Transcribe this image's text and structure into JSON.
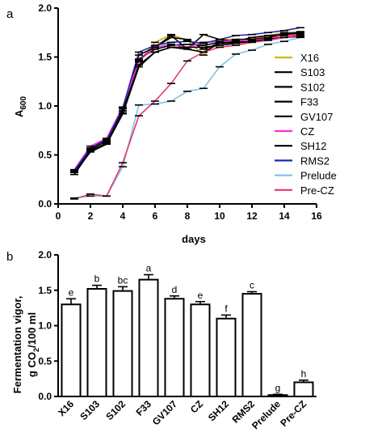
{
  "chart_data": [
    {
      "type": "line",
      "panel_label": "a",
      "xlabel": "days",
      "ylabel": "A600",
      "xlim": [
        0,
        16
      ],
      "ylim": [
        0,
        2.0
      ],
      "xticks": [
        0,
        2,
        4,
        6,
        8,
        10,
        12,
        14,
        16
      ],
      "yticks": [
        0.0,
        0.5,
        1.0,
        1.5,
        2.0
      ],
      "legend_position": "right",
      "series": [
        {
          "name": "X16",
          "color": "#d4b300",
          "x": [
            1,
            2,
            3,
            4,
            5,
            6,
            7,
            8,
            9,
            10,
            11,
            12,
            13,
            14,
            15
          ],
          "y": [
            0.33,
            0.55,
            0.63,
            0.93,
            1.45,
            1.65,
            1.73,
            1.67,
            1.52,
            1.68,
            1.68,
            1.68,
            1.72,
            1.75,
            1.76
          ]
        },
        {
          "name": "S103",
          "color": "#000000",
          "x": [
            1,
            2,
            3,
            4,
            5,
            6,
            7,
            8,
            9,
            10,
            11,
            12,
            13,
            14,
            15
          ],
          "y": [
            0.33,
            0.55,
            0.65,
            0.95,
            1.48,
            1.58,
            1.62,
            1.63,
            1.62,
            1.65,
            1.68,
            1.68,
            1.7,
            1.74,
            1.75
          ]
        },
        {
          "name": "S102",
          "color": "#000000",
          "x": [
            1,
            2,
            3,
            4,
            5,
            6,
            7,
            8,
            9,
            10,
            11,
            12,
            13,
            14,
            15
          ],
          "y": [
            0.32,
            0.57,
            0.66,
            0.95,
            1.47,
            1.6,
            1.72,
            1.58,
            1.73,
            1.68,
            1.66,
            1.7,
            1.72,
            1.73,
            1.74
          ]
        },
        {
          "name": "F33",
          "color": "#000000",
          "x": [
            1,
            2,
            3,
            4,
            5,
            6,
            7,
            8,
            9,
            10,
            11,
            12,
            13,
            14,
            15
          ],
          "y": [
            0.34,
            0.56,
            0.64,
            0.97,
            1.52,
            1.6,
            1.7,
            1.68,
            1.58,
            1.64,
            1.65,
            1.66,
            1.68,
            1.7,
            1.72
          ]
        },
        {
          "name": "GV107",
          "color": "#000000",
          "x": [
            1,
            2,
            3,
            4,
            5,
            6,
            7,
            8,
            9,
            10,
            11,
            12,
            13,
            14,
            15
          ],
          "y": [
            0.3,
            0.54,
            0.62,
            0.92,
            1.4,
            1.55,
            1.6,
            1.58,
            1.55,
            1.64,
            1.66,
            1.68,
            1.69,
            1.72,
            1.73
          ]
        },
        {
          "name": "CZ",
          "color": "#ff2dd6",
          "x": [
            1,
            2,
            3,
            4,
            5,
            6,
            7,
            8,
            9,
            10,
            11,
            12,
            13,
            14,
            15
          ],
          "y": [
            0.35,
            0.59,
            0.67,
            0.99,
            1.46,
            1.6,
            1.63,
            1.6,
            1.65,
            1.66,
            1.67,
            1.67,
            1.69,
            1.72,
            1.73
          ]
        },
        {
          "name": "SH12",
          "color": "#000000",
          "x": [
            1,
            2,
            3,
            4,
            5,
            6,
            7,
            8,
            9,
            10,
            11,
            12,
            13,
            14,
            15
          ],
          "y": [
            0.32,
            0.53,
            0.61,
            0.92,
            1.42,
            1.55,
            1.6,
            1.6,
            1.6,
            1.62,
            1.64,
            1.66,
            1.68,
            1.7,
            1.71
          ]
        },
        {
          "name": "RMS2",
          "color": "#1c2ab2",
          "x": [
            1,
            2,
            3,
            4,
            5,
            6,
            7,
            8,
            9,
            10,
            11,
            12,
            13,
            14,
            15
          ],
          "y": [
            0.34,
            0.57,
            0.65,
            0.98,
            1.55,
            1.62,
            1.65,
            1.66,
            1.64,
            1.68,
            1.72,
            1.73,
            1.75,
            1.77,
            1.8
          ]
        },
        {
          "name": "Prelude",
          "color": "#7fc4e6",
          "x": [
            1,
            2,
            3,
            4,
            5,
            6,
            7,
            8,
            9,
            10,
            11,
            12,
            13,
            14,
            15
          ],
          "y": [
            0.06,
            0.08,
            0.08,
            0.38,
            1.01,
            1.02,
            1.05,
            1.15,
            1.18,
            1.4,
            1.53,
            1.57,
            1.63,
            1.66,
            1.7
          ]
        },
        {
          "name": "Pre-CZ",
          "color": "#e8366c",
          "x": [
            1,
            2,
            3,
            4,
            5,
            6,
            7,
            8,
            9,
            10,
            11,
            12,
            13,
            14,
            15
          ],
          "y": [
            0.05,
            0.1,
            0.08,
            0.42,
            0.9,
            1.05,
            1.23,
            1.46,
            1.55,
            1.6,
            1.62,
            1.65,
            1.67,
            1.7,
            1.72
          ]
        }
      ]
    },
    {
      "type": "bar",
      "panel_label": "b",
      "xlabel": "",
      "ylabel": "Fermentation vigor, g CO2/100 ml",
      "ylabel_line1": "Fermentation vigor,",
      "ylabel_line2_prefix": "g CO",
      "ylabel_line2_sub": "2",
      "ylabel_line2_suffix": "/100 ml",
      "ylim": [
        0,
        2.0
      ],
      "yticks": [
        0.0,
        0.5,
        1.0,
        1.5,
        2.0
      ],
      "categories": [
        "X16",
        "S103",
        "S102",
        "F33",
        "GV107",
        "CZ",
        "SH12",
        "RMS2",
        "Prelude",
        "Pre-CZ"
      ],
      "values": [
        1.3,
        1.52,
        1.49,
        1.65,
        1.38,
        1.3,
        1.1,
        1.45,
        0.02,
        0.2
      ],
      "errors": [
        0.08,
        0.05,
        0.06,
        0.07,
        0.04,
        0.04,
        0.05,
        0.03,
        0.01,
        0.03
      ],
      "significance_letters": [
        "e",
        "b",
        "bc",
        "a",
        "d",
        "e",
        "f",
        "c",
        "g",
        "h"
      ]
    }
  ],
  "axis_a_label_prefix": "A",
  "axis_a_label_sub": "600"
}
